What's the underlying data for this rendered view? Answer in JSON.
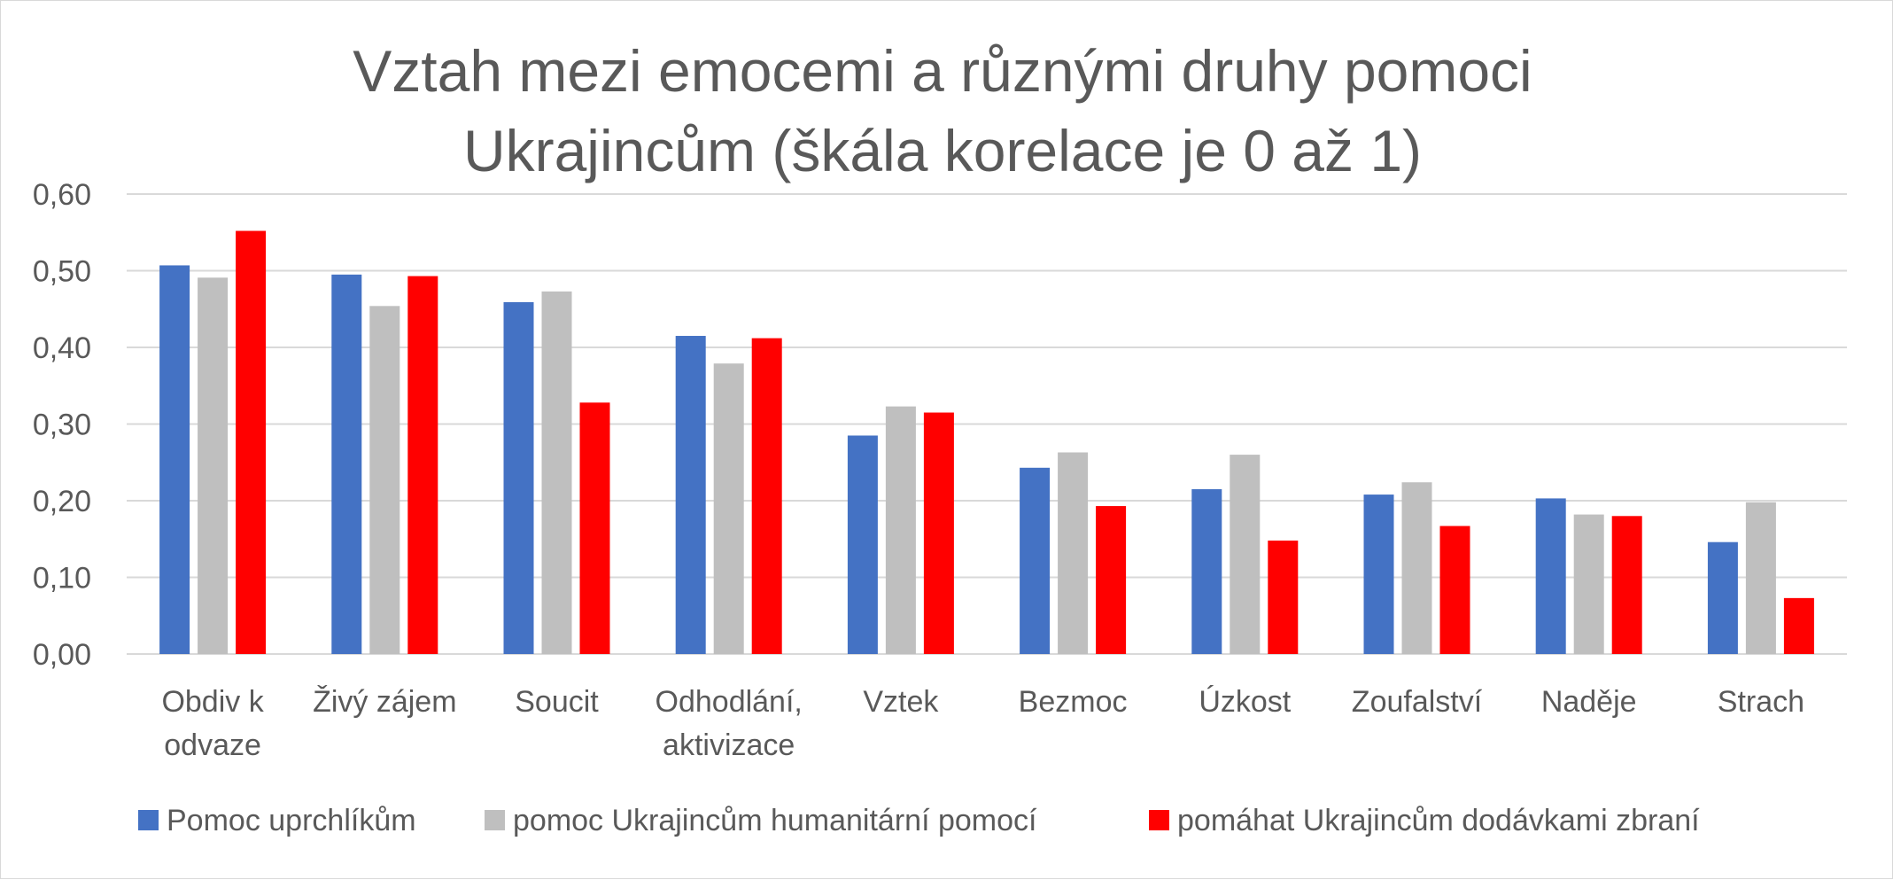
{
  "chart_data": {
    "type": "bar",
    "title": "Vztah mezi emocemi a různými druhy pomoci Ukrajincům (škála korelace je 0 až 1)",
    "title_lines": [
      "Vztah mezi emocemi a různými druhy pomoci",
      "Ukrajincům (škála korelace je 0 až 1)"
    ],
    "xlabel": "",
    "ylabel": "",
    "ylim": [
      0,
      0.6
    ],
    "yticks": [
      "0,00",
      "0,10",
      "0,20",
      "0,30",
      "0,40",
      "0,50",
      "0,60"
    ],
    "grid": true,
    "legend_position": "bottom",
    "categories": [
      "Obdiv k odvaze",
      "Živý zájem",
      "Soucit",
      "Odhodlání, aktivizace",
      "Vztek",
      "Bezmoc",
      "Úzkost",
      "Zoufalství",
      "Naděje",
      "Strach"
    ],
    "category_lines": [
      [
        "Obdiv k",
        "odvaze"
      ],
      [
        "Živý zájem"
      ],
      [
        "Soucit"
      ],
      [
        "Odhodlání,",
        "aktivizace"
      ],
      [
        "Vztek"
      ],
      [
        "Bezmoc"
      ],
      [
        "Úzkost"
      ],
      [
        "Zoufalství"
      ],
      [
        "Naděje"
      ],
      [
        "Strach"
      ]
    ],
    "series": [
      {
        "name": "Pomoc uprchlíkům",
        "color": "#4472c4",
        "values": [
          0.507,
          0.495,
          0.459,
          0.415,
          0.285,
          0.243,
          0.215,
          0.208,
          0.203,
          0.146
        ]
      },
      {
        "name": "pomoc Ukrajincům humanitární pomocí",
        "color": "#bfbfbf",
        "values": [
          0.491,
          0.454,
          0.473,
          0.379,
          0.323,
          0.263,
          0.26,
          0.224,
          0.182,
          0.198
        ]
      },
      {
        "name": "pomáhat Ukrajincům dodávkami zbraní",
        "color": "#ff0000",
        "values": [
          0.552,
          0.493,
          0.328,
          0.412,
          0.315,
          0.193,
          0.148,
          0.167,
          0.18,
          0.073
        ]
      }
    ]
  }
}
